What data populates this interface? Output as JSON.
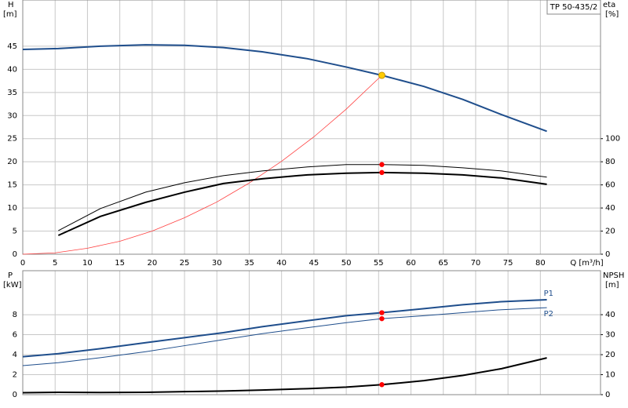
{
  "chart_data": [
    {
      "type": "line",
      "title": "TP 50-435/2",
      "ylabel": "H",
      "yunit": "[m]",
      "y2label": "eta",
      "y2unit": "[%]",
      "xlabel": "Q [m³/h]",
      "xlim": [
        0,
        89.3
      ],
      "xticks": [
        0,
        5,
        10,
        15,
        20,
        25,
        30,
        35,
        40,
        45,
        50,
        55,
        60,
        65,
        70,
        75,
        80
      ],
      "ylim": [
        0,
        55
      ],
      "yticks": [
        0,
        5,
        10,
        15,
        20,
        25,
        30,
        35,
        40,
        45
      ],
      "y2lim": [
        0,
        220
      ],
      "y2ticks": [
        0,
        20,
        40,
        60,
        80,
        100
      ],
      "grid": true,
      "show_xtick_labels": true,
      "series": [
        {
          "color": "#1f4e8c",
          "line_width": 2,
          "x": [
            0,
            5.5,
            12,
            19,
            25,
            31,
            37,
            44,
            50,
            55.5,
            62,
            68,
            74,
            81
          ],
          "values": [
            44.3,
            44.5,
            45,
            45.3,
            45.2,
            44.7,
            43.8,
            42.3,
            40.5,
            38.7,
            36.3,
            33.5,
            30.2,
            26.6
          ]
        },
        {
          "color": "#ff4040",
          "line_width": 0.8,
          "x": [
            0,
            5,
            10,
            15,
            20,
            25,
            30,
            35,
            40,
            45,
            50,
            55.5
          ],
          "values": [
            0,
            0.3,
            1.3,
            2.8,
            5,
            7.9,
            11.3,
            15.4,
            20.1,
            25.4,
            31.4,
            38.7
          ]
        },
        {
          "color": "#000000",
          "line_width": 1,
          "axis": "y2",
          "x": [
            5.5,
            12,
            19,
            25,
            31,
            37,
            44,
            50,
            55.5,
            62,
            68,
            74,
            81
          ],
          "values": [
            20.4,
            39.5,
            53.7,
            61.9,
            68,
            72.1,
            75.5,
            77.6,
            77.6,
            76.9,
            74.8,
            72.1,
            66.7
          ]
        },
        {
          "color": "#000000",
          "line_width": 2,
          "axis": "y2",
          "x": [
            5.5,
            12,
            19,
            25,
            31,
            37,
            44,
            50,
            55.5,
            62,
            68,
            74,
            81
          ],
          "values": [
            16.3,
            32.7,
            44.9,
            53.7,
            61.2,
            65.3,
            68.7,
            70.1,
            70.7,
            70.1,
            68.7,
            66,
            60.5
          ]
        },
        {
          "color": "#ffcc00",
          "marker": true,
          "x": [
            55.5
          ],
          "values": [
            38.7
          ]
        },
        {
          "color": "#ff0000",
          "marker": true,
          "axis": "y2",
          "x": [
            55.5,
            55.5
          ],
          "values": [
            77.6,
            70.7
          ]
        }
      ]
    },
    {
      "type": "line",
      "ylabel": "P",
      "yunit": "[kW]",
      "y2label": "NPSH",
      "y2unit": "[m]",
      "xlim": [
        0,
        89.3
      ],
      "xticks": [
        0,
        5,
        10,
        15,
        20,
        25,
        30,
        35,
        40,
        45,
        50,
        55,
        60,
        65,
        70,
        75,
        80
      ],
      "ylim": [
        0,
        12.4
      ],
      "yticks": [
        0,
        2,
        4,
        6,
        8
      ],
      "y2lim": [
        0,
        62
      ],
      "y2ticks": [
        0,
        10,
        20,
        30,
        40
      ],
      "grid": true,
      "show_xtick_labels": false,
      "series": [
        {
          "name": "P1",
          "color": "#1f4e8c",
          "line_width": 2,
          "x": [
            0,
            5.5,
            12,
            19,
            25,
            31,
            37,
            44,
            50,
            55.5,
            62,
            68,
            74,
            81
          ],
          "values": [
            3.8,
            4.1,
            4.6,
            5.2,
            5.7,
            6.2,
            6.8,
            7.4,
            7.9,
            8.2,
            8.6,
            9.0,
            9.3,
            9.5
          ]
        },
        {
          "name": "P2",
          "color": "#1f4e8c",
          "line_width": 1,
          "x": [
            0,
            5.5,
            12,
            19,
            25,
            31,
            37,
            44,
            50,
            55.5,
            62,
            68,
            74,
            81
          ],
          "values": [
            2.9,
            3.2,
            3.7,
            4.3,
            4.9,
            5.5,
            6.1,
            6.7,
            7.2,
            7.6,
            7.9,
            8.2,
            8.5,
            8.7
          ]
        },
        {
          "color": "#000000",
          "line_width": 2,
          "axis": "y2",
          "x": [
            0,
            5.5,
            12,
            19,
            25,
            31,
            37,
            44,
            50,
            55.5,
            62,
            68,
            74,
            81
          ],
          "values": [
            1,
            1.2,
            1.1,
            1.2,
            1.5,
            1.8,
            2.3,
            3,
            3.8,
            5,
            7,
            9.6,
            13,
            18.4
          ]
        },
        {
          "color": "#ff0000",
          "marker": true,
          "x": [
            55.5,
            55.5
          ],
          "values": [
            8.2,
            7.6
          ]
        },
        {
          "color": "#ff0000",
          "marker": true,
          "axis": "y2",
          "x": [
            55.5
          ],
          "values": [
            5
          ]
        }
      ]
    }
  ]
}
